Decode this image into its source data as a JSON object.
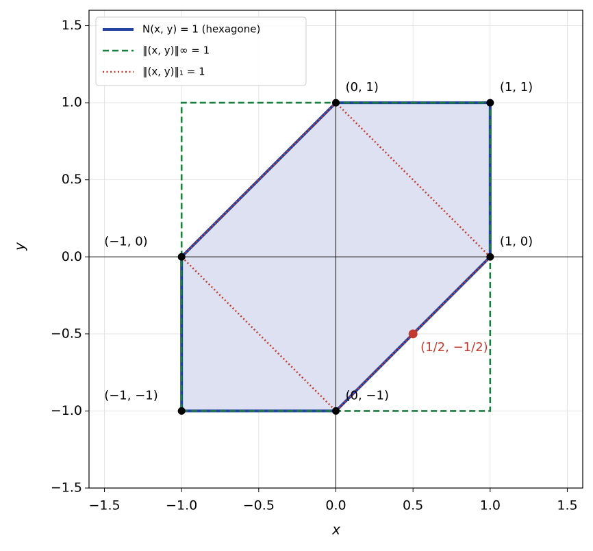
{
  "chart_data": {
    "type": "line",
    "xlabel": "x",
    "ylabel": "y",
    "xlim": [
      -1.6,
      1.6
    ],
    "ylim": [
      -1.5,
      1.6
    ],
    "xticks": [
      {
        "value": -1.5,
        "label": "−1.5"
      },
      {
        "value": -1,
        "label": "−1.0"
      },
      {
        "value": -0.5,
        "label": "−0.5"
      },
      {
        "value": 0,
        "label": "0.0"
      },
      {
        "value": 0.5,
        "label": "0.5"
      },
      {
        "value": 1,
        "label": "1.0"
      },
      {
        "value": 1.5,
        "label": "1.5"
      }
    ],
    "yticks": [
      {
        "value": -1.5,
        "label": "−1.5"
      },
      {
        "value": -1,
        "label": "−1.0"
      },
      {
        "value": -0.5,
        "label": "−0.5"
      },
      {
        "value": 0,
        "label": "0.0"
      },
      {
        "value": 0.5,
        "label": "0.5"
      },
      {
        "value": 1,
        "label": "1.0"
      },
      {
        "value": 1.5,
        "label": "1.5"
      }
    ],
    "grid": true,
    "legend": "upper left",
    "series": [
      {
        "name": "N(x, y) = 1 (hexagone)",
        "color": "#2341a0",
        "fill_color": "#dde1f2",
        "dash": "solid",
        "x": [
          0,
          1,
          1,
          0,
          -1,
          -1,
          0
        ],
        "y": [
          1,
          1,
          0,
          -1,
          -1,
          0,
          1
        ]
      },
      {
        "name": "‖(x, y)‖∞ = 1",
        "color": "#1b7d3e",
        "dash": "dashed",
        "x": [
          -1,
          1,
          1,
          -1,
          -1
        ],
        "y": [
          -1,
          -1,
          1,
          1,
          -1
        ]
      },
      {
        "name": "‖(x, y)‖₁ = 1",
        "color": "#c33a2e",
        "dash": "dotted",
        "x": [
          1,
          0,
          -1,
          0,
          1
        ],
        "y": [
          0,
          1,
          0,
          -1,
          0
        ]
      }
    ],
    "points": {
      "color": "#000000",
      "x": [
        0,
        1,
        1,
        0,
        -1,
        -1
      ],
      "y": [
        1,
        1,
        0,
        -1,
        -1,
        0
      ],
      "labels": [
        "(0, 1)",
        "(1, 1)",
        "(1, 0)",
        "(0, −1)",
        "(−1, −1)",
        "(−1, 0)"
      ]
    },
    "highlight": {
      "color": "#c33a2e",
      "x": 0.5,
      "y": -0.5,
      "label": "(1/2, −1/2)"
    }
  }
}
